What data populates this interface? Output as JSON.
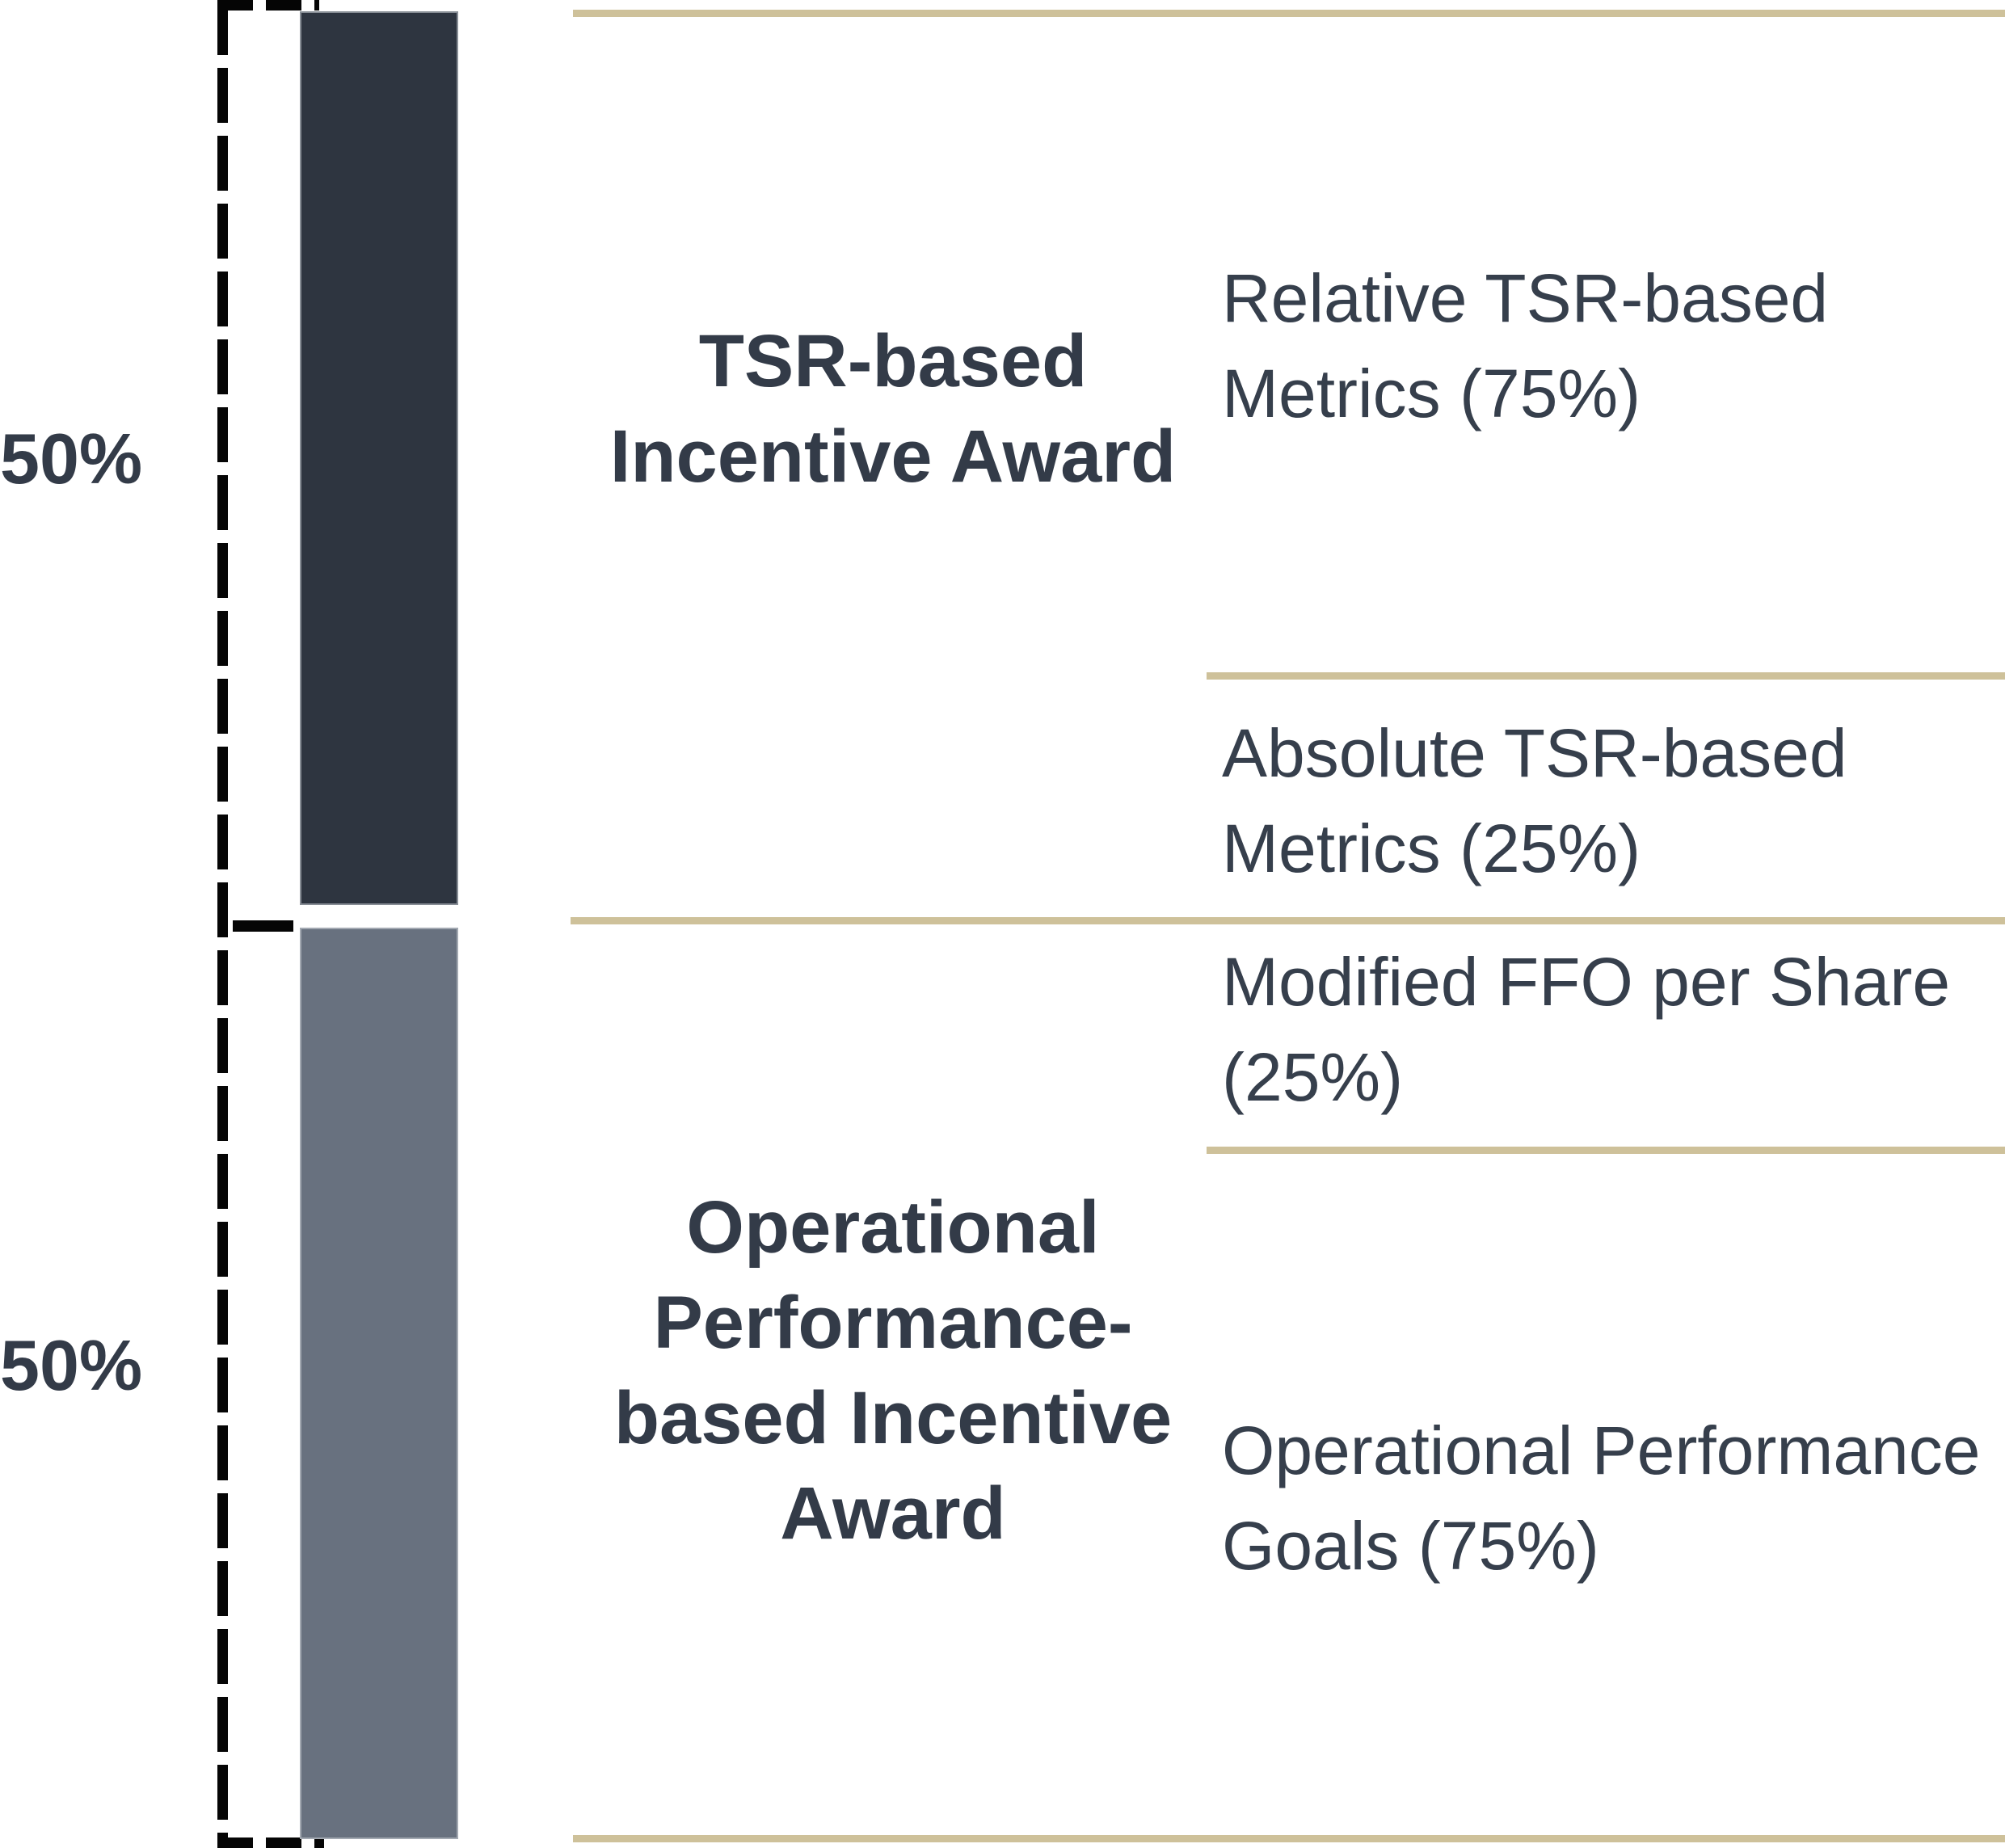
{
  "figure_type": "ltip-award-structure-diagram",
  "left_weight_labels": [
    "50%",
    "50%"
  ],
  "colors": {
    "bar_tsr_dark": "#2E3540",
    "bar_operational_gray": "#68717F",
    "separator_tan": "#CEC19A",
    "text_dark_slate": "#333B48",
    "bracket_black": "#050505",
    "background": "#FFFFFF"
  },
  "sections": [
    {
      "weight": "50%",
      "award_lines": [
        "TSR-based",
        "Incentive Award"
      ],
      "metrics": [
        {
          "lines": [
            "Relative TSR-based",
            "Metrics (75%)"
          ]
        },
        {
          "lines": [
            "Absolute TSR-based",
            "Metrics (25%)"
          ]
        }
      ]
    },
    {
      "weight": "50%",
      "award_lines": [
        "Operational",
        "Performance-",
        "based Incentive",
        "Award"
      ],
      "metrics": [
        {
          "lines": [
            "Modified FFO per Share",
            "(25%)"
          ]
        },
        {
          "lines": [
            "Operational Performance",
            "Goals (75%)"
          ]
        }
      ]
    }
  ],
  "chart_data": {
    "type": "bar",
    "subtype": "stacked-100pct-single-column",
    "orientation": "vertical",
    "categories": [
      "TSR-based Incentive Award",
      "Operational Performance-based Incentive Award"
    ],
    "values": [
      50,
      50
    ],
    "unit": "%",
    "sub_breakdown": [
      {
        "parent": "TSR-based Incentive Award",
        "items": [
          {
            "label": "Relative TSR-based Metrics",
            "value": 75
          },
          {
            "label": "Absolute TSR-based Metrics",
            "value": 25
          }
        ]
      },
      {
        "parent": "Operational Performance-based Incentive Award",
        "items": [
          {
            "label": "Modified FFO per Share",
            "value": 25
          },
          {
            "label": "Operational Performance Goals",
            "value": 75
          }
        ]
      }
    ],
    "title": "",
    "xlabel": "",
    "ylabel": "",
    "legend": false,
    "grid": false
  }
}
